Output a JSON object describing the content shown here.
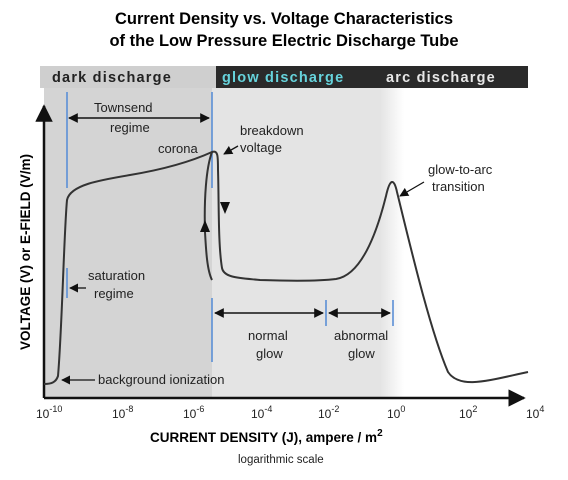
{
  "title": {
    "line1": "Current Density vs. Voltage Characteristics",
    "line2": "of the Low Pressure Electric Discharge Tube"
  },
  "bands": {
    "dark": "dark discharge",
    "glow": "glow discharge",
    "arc": "arc discharge"
  },
  "labels": {
    "townsend_1": "Townsend",
    "townsend_2": "regime",
    "corona": "corona",
    "breakdown_1": "breakdown",
    "breakdown_2": "voltage",
    "glow_to_arc_1": "glow-to-arc",
    "glow_to_arc_2": "transition",
    "saturation_1": "saturation",
    "saturation_2": "regime",
    "normal_1": "normal",
    "normal_2": "glow",
    "abnormal_1": "abnormal",
    "abnormal_2": "glow",
    "background": "background ionization"
  },
  "axes": {
    "y_title": "VOLTAGE (V) or E-FIELD (V/m)",
    "x_title": "CURRENT DENSITY (J), ampere / m",
    "x_title_sup": "2",
    "x_note": "logarithmic scale",
    "x_ticks": [
      {
        "base": "10",
        "exp": "-10"
      },
      {
        "base": "10",
        "exp": "-8"
      },
      {
        "base": "10",
        "exp": "-6"
      },
      {
        "base": "10",
        "exp": "-4"
      },
      {
        "base": "10",
        "exp": "-2"
      },
      {
        "base": "10",
        "exp": "0"
      },
      {
        "base": "10",
        "exp": "2"
      },
      {
        "base": "10",
        "exp": "4"
      }
    ]
  },
  "colors": {
    "dark_region": "#d4d4d4",
    "band_bar": "#2a2a2a",
    "glow_band_text": "#66d3dc",
    "arc_band_text": "#e8e8e8",
    "dark_band_text": "#222222",
    "boundary_lines": "#5b8fd6",
    "curve": "#333333"
  }
}
